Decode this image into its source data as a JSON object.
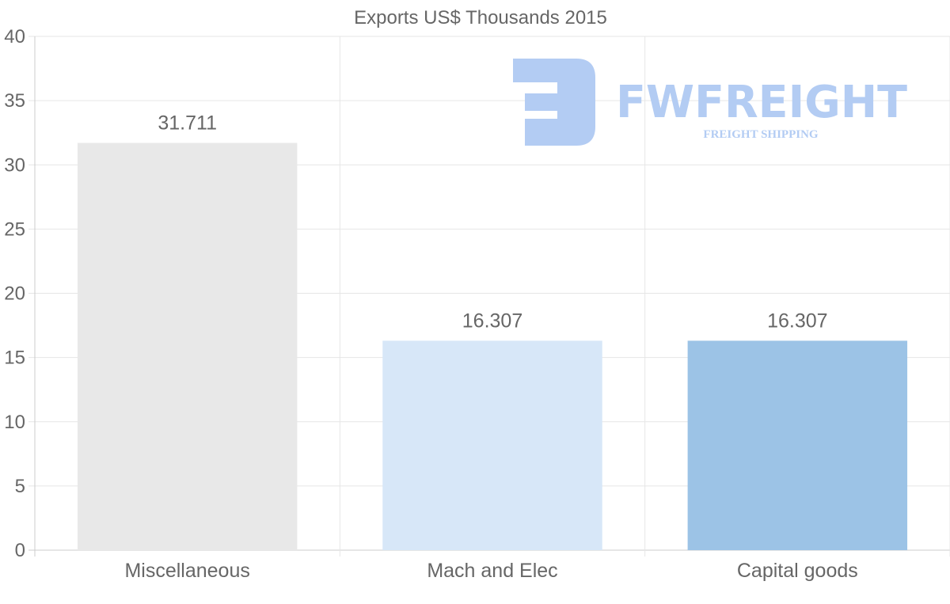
{
  "chart_data": {
    "type": "bar",
    "title": "Exports US$ Thousands 2015",
    "categories": [
      "Miscellaneous",
      "Mach and Elec",
      "Capital goods"
    ],
    "values": [
      31.711,
      16.307,
      16.307
    ],
    "data_labels": [
      "31.711",
      "16.307",
      "16.307"
    ],
    "colors": [
      "#e8e8e8",
      "#d7e7f8",
      "#9cc3e6"
    ],
    "xlabel": "",
    "ylabel": "",
    "ylim": [
      0,
      40
    ],
    "yticks": [
      0,
      5,
      10,
      15,
      20,
      25,
      30,
      35,
      40
    ],
    "grid": true,
    "legend": "none"
  },
  "watermark": {
    "brand": "FWFREIGHT",
    "tagline": "FREIGHT SHIPPING",
    "color": "#adc8f2"
  }
}
